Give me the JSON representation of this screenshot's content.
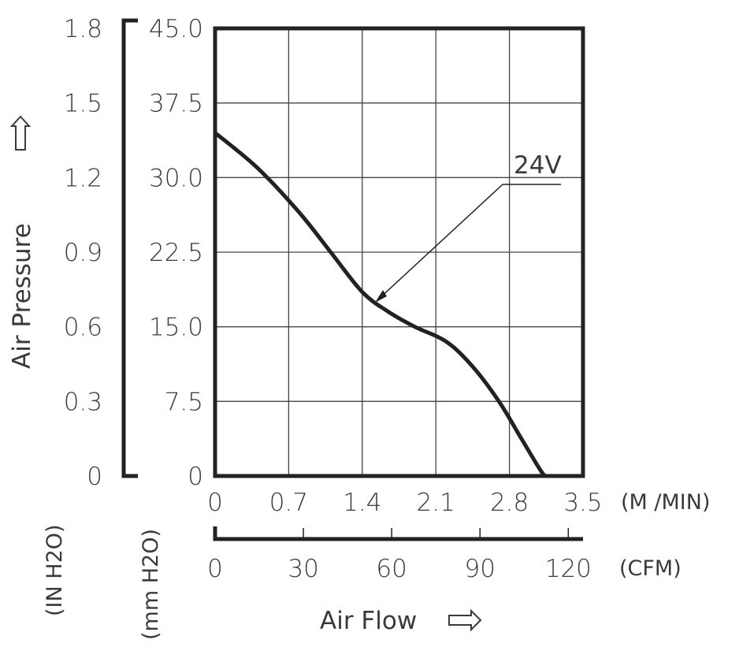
{
  "chart_data": {
    "type": "line",
    "y_label": "Air Pressure",
    "x_label": "Air Flow",
    "y_inch_ticks": [
      "1.8",
      "1.5",
      "1.2",
      "0.9",
      "0.6",
      "0.3",
      "0"
    ],
    "y_mm_ticks": [
      "45.0",
      "37.5",
      "30.0",
      "22.5",
      "15.0",
      "7.5",
      "0"
    ],
    "y_inch_unit": "(IN H2O)",
    "y_mm_unit": "(mm H2O)",
    "x_m3_ticks": [
      "0",
      "0.7",
      "1.4",
      "2.1",
      "2.8",
      "3.5"
    ],
    "x_cfm_ticks": [
      "0",
      "30",
      "60",
      "90",
      "120"
    ],
    "x_m3_unit": "(M /MIN)",
    "x_cfm_unit": "(CFM)",
    "x_range": [
      0,
      3.5
    ],
    "y_range": [
      0,
      45
    ],
    "grid": true,
    "series": [
      {
        "name": "24V",
        "x": [
          0,
          0.4,
          0.8,
          1.1,
          1.4,
          1.65,
          1.9,
          2.2,
          2.45,
          2.7,
          2.9,
          3.1,
          3.15
        ],
        "y": [
          34.5,
          31.0,
          26.5,
          22.5,
          18.5,
          16.5,
          15.0,
          13.5,
          11.0,
          7.5,
          4.0,
          0.5,
          0
        ]
      }
    ]
  }
}
